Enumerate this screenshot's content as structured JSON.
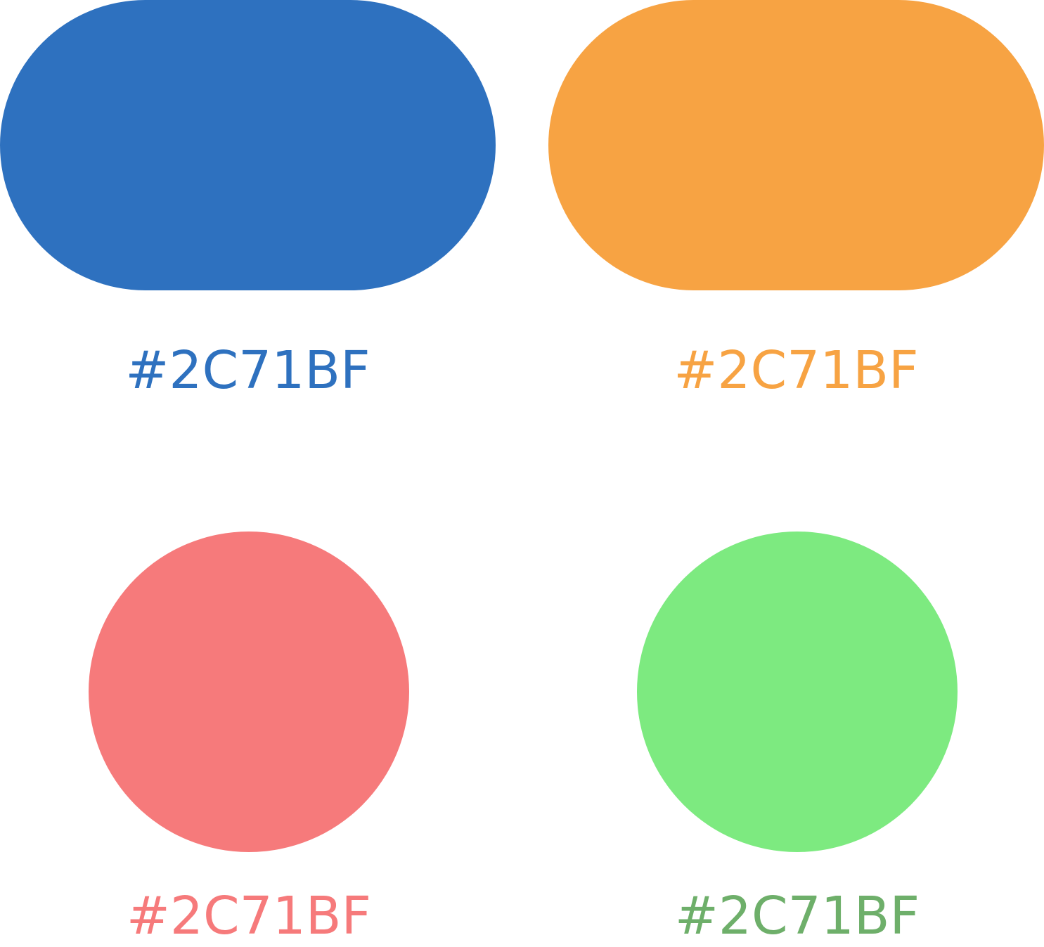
{
  "swatches": [
    {
      "shape": "pill",
      "fill": "#2E71BF",
      "label": "#2C71BF",
      "label_color": "#2E71BF"
    },
    {
      "shape": "pill",
      "fill": "#F7A343",
      "label": "#2C71BF",
      "label_color": "#F7A343"
    },
    {
      "shape": "circle",
      "fill": "#F67A7B",
      "label": "#2C71BF",
      "label_color": "#F67A7B"
    },
    {
      "shape": "circle",
      "fill": "#7DEA80",
      "label": "#2C71BF",
      "label_color": "#6EAF6A"
    }
  ]
}
